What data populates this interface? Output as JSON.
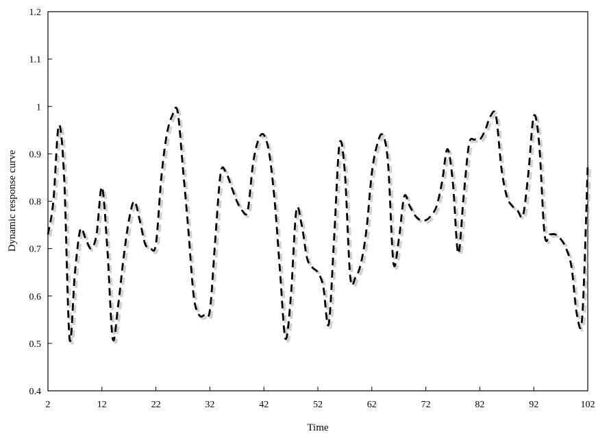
{
  "chart_data": {
    "type": "line",
    "title": "",
    "xlabel": "Time",
    "ylabel": "Dynamic response curve",
    "xlim": [
      2,
      102
    ],
    "ylim": [
      0.4,
      1.2
    ],
    "x_ticks": [
      "2",
      "12",
      "22",
      "32",
      "42",
      "52",
      "62",
      "72",
      "82",
      "92",
      "102"
    ],
    "y_ticks": [
      "0.4",
      "0.5",
      "0.6",
      "0.7",
      "0.8",
      "0.9",
      "1",
      "1.1",
      "1.2"
    ],
    "grid": false,
    "line_style": "dashed",
    "series": [
      {
        "color": "#000000",
        "x": [
          2,
          3,
          4,
          5,
          6,
          7,
          8,
          9,
          10,
          11,
          12,
          13,
          14,
          15,
          16,
          17,
          18,
          19,
          20,
          21,
          22,
          23,
          24,
          25,
          26,
          27,
          28,
          29,
          30,
          31,
          32,
          33,
          34,
          35,
          36,
          37,
          38,
          39,
          40,
          41,
          42,
          43,
          44,
          45,
          46,
          47,
          48,
          49,
          50,
          51,
          52,
          53,
          54,
          55,
          56,
          57,
          58,
          59,
          60,
          61,
          62,
          63,
          64,
          65,
          66,
          67,
          68,
          69,
          70,
          71,
          72,
          73,
          74,
          75,
          76,
          77,
          78,
          79,
          80,
          81,
          82,
          83,
          84,
          85,
          86,
          87,
          88,
          89,
          90,
          91,
          92,
          93,
          94,
          95,
          96,
          97,
          98,
          99,
          100,
          101,
          102
        ],
        "y": [
          0.73,
          0.8,
          0.96,
          0.85,
          0.51,
          0.65,
          0.74,
          0.72,
          0.7,
          0.73,
          0.83,
          0.7,
          0.51,
          0.58,
          0.68,
          0.76,
          0.8,
          0.76,
          0.71,
          0.7,
          0.71,
          0.85,
          0.94,
          0.98,
          0.99,
          0.87,
          0.74,
          0.6,
          0.56,
          0.56,
          0.57,
          0.72,
          0.86,
          0.86,
          0.83,
          0.8,
          0.78,
          0.78,
          0.88,
          0.93,
          0.94,
          0.9,
          0.8,
          0.65,
          0.51,
          0.6,
          0.78,
          0.75,
          0.68,
          0.66,
          0.65,
          0.62,
          0.54,
          0.72,
          0.92,
          0.86,
          0.64,
          0.64,
          0.67,
          0.74,
          0.86,
          0.92,
          0.94,
          0.88,
          0.67,
          0.72,
          0.81,
          0.79,
          0.77,
          0.76,
          0.76,
          0.77,
          0.79,
          0.84,
          0.91,
          0.84,
          0.69,
          0.81,
          0.92,
          0.93,
          0.93,
          0.95,
          0.98,
          0.98,
          0.87,
          0.81,
          0.79,
          0.78,
          0.77,
          0.86,
          0.98,
          0.92,
          0.73,
          0.73,
          0.73,
          0.72,
          0.7,
          0.66,
          0.56,
          0.56,
          0.88
        ]
      }
    ]
  }
}
